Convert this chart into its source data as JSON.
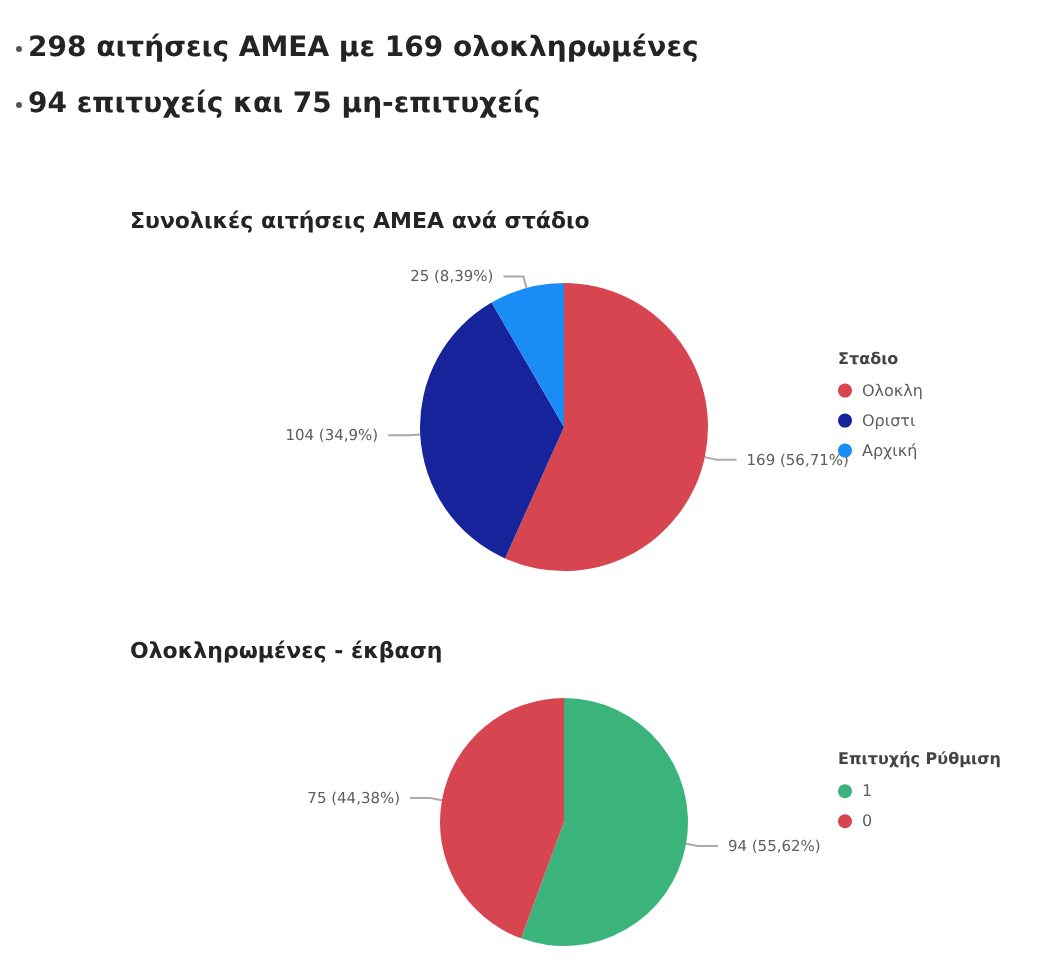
{
  "chart_data": [
    {
      "type": "pie",
      "title": "Συνολικές αιτήσεις ΑΜΕΑ ανά στάδιο",
      "annotations": [
        "298 αιτήσεις ΑΜΕΑ με 169 ολοκληρωμένες",
        "94 επιτυχείς και 75 μη-επιτυχείς"
      ],
      "legend_title": "Σταδιο",
      "legend": "right",
      "categories": [
        "Ολοκλη",
        "Οριστι",
        "Αρχική"
      ],
      "values": [
        169,
        104,
        25
      ],
      "colors": [
        "#d64550",
        "#17239a",
        "#1a8cf5"
      ],
      "value_labels": [
        "169 (56,71%)",
        "104 (34,9%)",
        "25 (8,39%)"
      ]
    },
    {
      "type": "pie",
      "title": "Ολοκληρωμένες - έκβαση",
      "legend_title": "Επιτυχής Ρύθμιση",
      "legend": "right",
      "categories": [
        "1",
        "0"
      ],
      "values": [
        94,
        75
      ],
      "colors": [
        "#3ab47a",
        "#d64550"
      ],
      "value_labels": [
        "94 (55,62%)",
        "75 (44,38%)"
      ]
    }
  ]
}
